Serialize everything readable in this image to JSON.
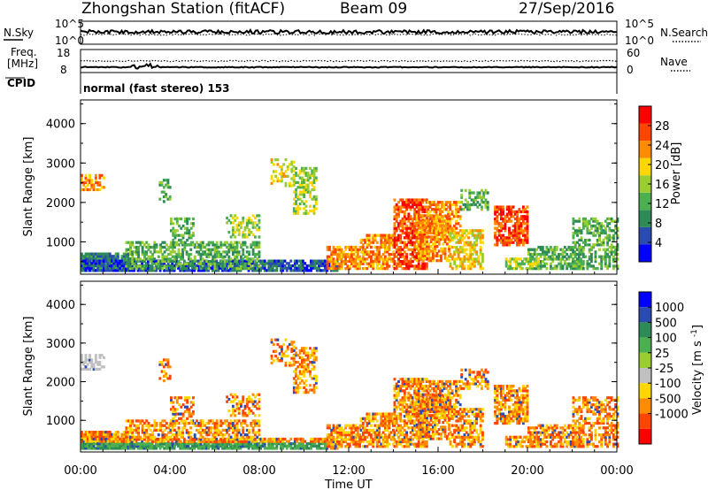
{
  "header": {
    "station": "Zhongshan Station (fitACF)",
    "beam": "Beam 09",
    "date": "27/Sep/2016"
  },
  "noise_panel": {
    "left_label": "N.Sky",
    "right_label": "N.Search",
    "left_ticks": [
      "10^5",
      "10^0"
    ],
    "right_ticks": [
      "10^5",
      "10^0"
    ]
  },
  "freq_panel": {
    "left_label_line1": "Freq.",
    "left_label_line2": "[MHz]",
    "right_label": "Nave",
    "left_ticks": [
      "18",
      "8"
    ],
    "right_ticks": [
      "60",
      "0"
    ]
  },
  "cpid": {
    "label": "CPID",
    "mode": "normal (fast stereo) 153"
  },
  "colors": {
    "power_scale": [
      "#0000ff",
      "#2a4bb0",
      "#2e8b57",
      "#4caf50",
      "#9acd32",
      "#ffd700",
      "#ff8c00",
      "#ff4500",
      "#ff0000"
    ],
    "velocity_scale": [
      "#0000ff",
      "#2a4bb0",
      "#2e8b57",
      "#4caf50",
      "#9acd32",
      "#c0c0c0",
      "#ffd700",
      "#ff8c00",
      "#ff4500",
      "#ff0000"
    ]
  },
  "chart_data": [
    {
      "type": "heatmap",
      "name": "power",
      "ylabel": "Slant Range [km]",
      "yticks": [
        1000,
        2000,
        3000,
        4000
      ],
      "ylim": [
        180,
        4600
      ],
      "xlim_hours": [
        0,
        24
      ],
      "colorbar_label": "Power [dB]",
      "colorbar_ticks": [
        "4",
        "8",
        "12",
        "16",
        "20",
        "24",
        "28"
      ],
      "colorbar_range": [
        0,
        32
      ],
      "colorbar_tick_values": [
        4,
        8,
        12,
        16,
        20,
        24,
        28
      ]
    },
    {
      "type": "heatmap",
      "name": "velocity",
      "ylabel": "Slant Range [km]",
      "yticks": [
        1000,
        2000,
        3000,
        4000
      ],
      "ylim": [
        180,
        4600
      ],
      "xlim_hours": [
        0,
        24
      ],
      "xticks": [
        "00:00",
        "04:00",
        "08:00",
        "12:00",
        "16:00",
        "20:00",
        "00:00"
      ],
      "xtick_hours": [
        0,
        4,
        8,
        12,
        16,
        20,
        24
      ],
      "xlabel": "Time UT",
      "colorbar_label": "Velocity [m s^-1]",
      "colorbar_ticks": [
        "1000",
        "500",
        "100",
        "25",
        "-25",
        "-100",
        "-500",
        "-1000"
      ]
    }
  ]
}
